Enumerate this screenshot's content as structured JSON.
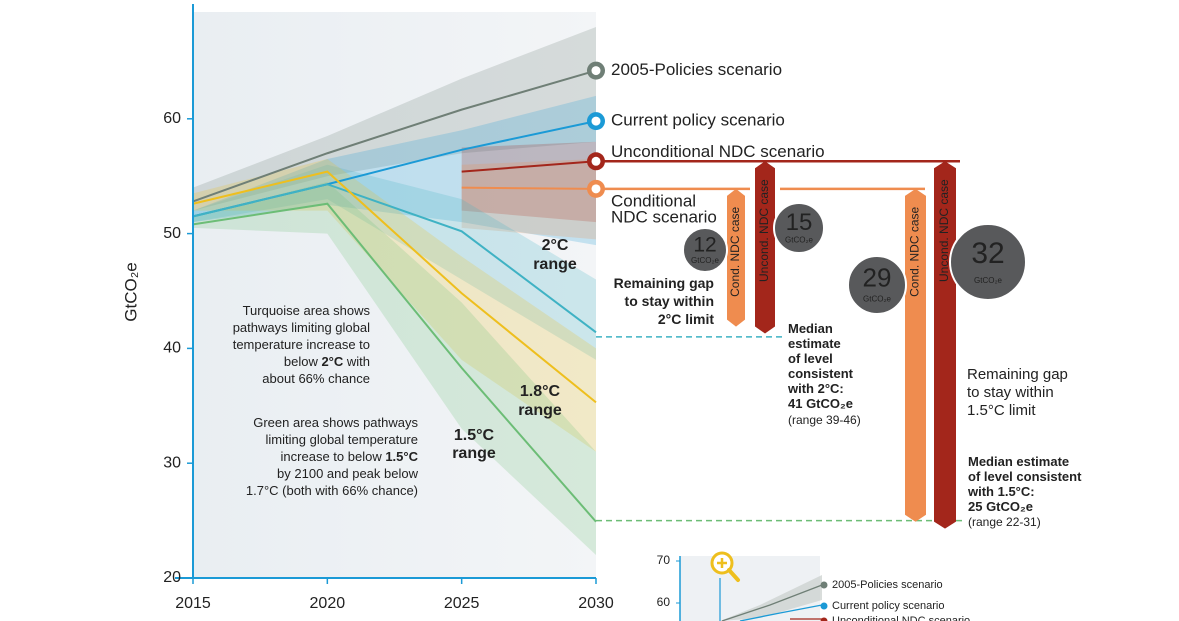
{
  "chart_data": {
    "type": "line",
    "ylabel": "GtCO₂e",
    "x": [
      2015,
      2020,
      2025,
      2030
    ],
    "xlim": [
      2015,
      2030
    ],
    "xticks": [
      2015,
      2020,
      2025,
      2030
    ],
    "ylim": [
      20,
      70
    ],
    "yticks": [
      20,
      30,
      40,
      50,
      60
    ],
    "series": [
      {
        "name": "2005-Policies scenario",
        "color": "#6f7f76",
        "values": [
          52.8,
          57,
          60.8,
          64.2
        ],
        "low": [
          52,
          55,
          57,
          58
        ],
        "high": [
          54,
          58.5,
          63.5,
          68
        ]
      },
      {
        "name": "Current policy scenario",
        "color": "#1b9ad6",
        "values": [
          51.5,
          54.3,
          57.3,
          59.8
        ],
        "low": [
          51,
          52.5,
          51,
          49
        ],
        "high": [
          52,
          56.5,
          59,
          62
        ]
      },
      {
        "name": "Unconditional NDC scenario",
        "color": "#a3261b",
        "values": [
          null,
          null,
          55.4,
          56.3
        ],
        "low": [
          null,
          null,
          52,
          51
        ],
        "high": [
          null,
          null,
          57.5,
          58
        ]
      },
      {
        "name": [
          "Conditional",
          "NDC scenario"
        ],
        "color": "#ef8c4f",
        "values": [
          null,
          null,
          54,
          53.9
        ],
        "low": [
          null,
          null,
          50.5,
          49.5
        ],
        "high": [
          null,
          null,
          56,
          56.5
        ]
      },
      {
        "color": "#3fb2c4",
        "values": [
          51.5,
          54.3,
          50.2,
          41.4
        ],
        "low": [
          51,
          53,
          46,
          39
        ],
        "high": [
          52,
          56,
          53,
          46
        ]
      },
      {
        "color": "#eebf1e",
        "values": [
          52.6,
          55.4,
          44.8,
          35.3
        ],
        "low": [
          52,
          52,
          39,
          31
        ],
        "high": [
          53.5,
          56.5,
          48,
          40
        ]
      },
      {
        "color": "#6cbd76",
        "values": [
          50.8,
          52.6,
          38.3,
          24.9
        ],
        "low": [
          50.5,
          50,
          33,
          22
        ],
        "high": [
          51.5,
          54.5,
          44,
          31
        ]
      }
    ],
    "gap_unit": "GtCO₂e",
    "gaps": [
      {
        "label": "Cond. NDC case",
        "value": 12,
        "color": "#ef8c4f"
      },
      {
        "label": "Uncond. NDC case",
        "value": 15,
        "color": "#a3261b"
      },
      {
        "label": "Cond. NDC case",
        "value": 29,
        "color": "#ef8c4f"
      },
      {
        "label": "Uncond. NDC case",
        "value": 32,
        "color": "#a3261b"
      }
    ],
    "reference_lines": [
      {
        "value": 41,
        "color": "#3fb2c4"
      },
      {
        "value": 25,
        "color": "#6cbd76"
      }
    ],
    "annotations": [
      {
        "lines": [
          [
            "Turquoise area shows"
          ],
          [
            "pathways limiting global"
          ],
          [
            "temperature increase to"
          ],
          [
            "below ",
            "2°C",
            " with"
          ],
          [
            "about 66% chance"
          ]
        ]
      },
      {
        "lines": [
          [
            "Green area shows pathways"
          ],
          [
            "limiting global temperature"
          ],
          [
            "increase to below ",
            "1.5°C"
          ],
          [
            "by 2100 and peak below"
          ],
          [
            "1.7°C (both with 66% chance)"
          ]
        ]
      },
      {
        "lines": [
          [
            "2°C"
          ],
          [
            "range"
          ]
        ],
        "bold": true
      },
      {
        "lines": [
          [
            "1.8°C"
          ],
          [
            "range"
          ]
        ],
        "bold": true
      },
      {
        "lines": [
          [
            "1.5°C"
          ],
          [
            "range"
          ]
        ],
        "bold": true
      },
      {
        "lines": [
          [
            "Remaining gap"
          ],
          [
            "to stay within"
          ],
          [
            "2°C limit"
          ]
        ],
        "bold": true
      },
      {
        "lines": [
          [
            "Median"
          ],
          [
            "estimate"
          ],
          [
            "of level"
          ],
          [
            "consistent"
          ],
          [
            "with 2°C:"
          ]
        ],
        "bold": true
      },
      {
        "lines": [
          [
            "41 GtCO₂e"
          ]
        ],
        "bold": true,
        "color": "#3fb2c4"
      },
      {
        "lines": [
          [
            "(range 39-46)"
          ]
        ]
      },
      {
        "lines": [
          [
            "Remaining gap"
          ],
          [
            "to stay within"
          ],
          [
            "1.5°C limit"
          ]
        ]
      },
      {
        "lines": [
          [
            "Median estimate"
          ],
          [
            "of level consistent"
          ],
          [
            "with 1.5°C:"
          ]
        ],
        "bold": true
      },
      {
        "lines": [
          [
            "25 GtCO₂e"
          ]
        ],
        "bold": true,
        "color": "#6cbd76"
      },
      {
        "lines": [
          [
            "(range 22-31)"
          ]
        ]
      }
    ],
    "inset": {
      "yticks": [
        70,
        60
      ],
      "labels": [
        {
          "text": "2005-Policies scenario",
          "color": "#6f7f76"
        },
        {
          "text": "Current policy scenario",
          "color": "#1b9ad6"
        },
        {
          "text": "Unconditional NDC scenario",
          "color": "#a3261b"
        }
      ]
    }
  }
}
